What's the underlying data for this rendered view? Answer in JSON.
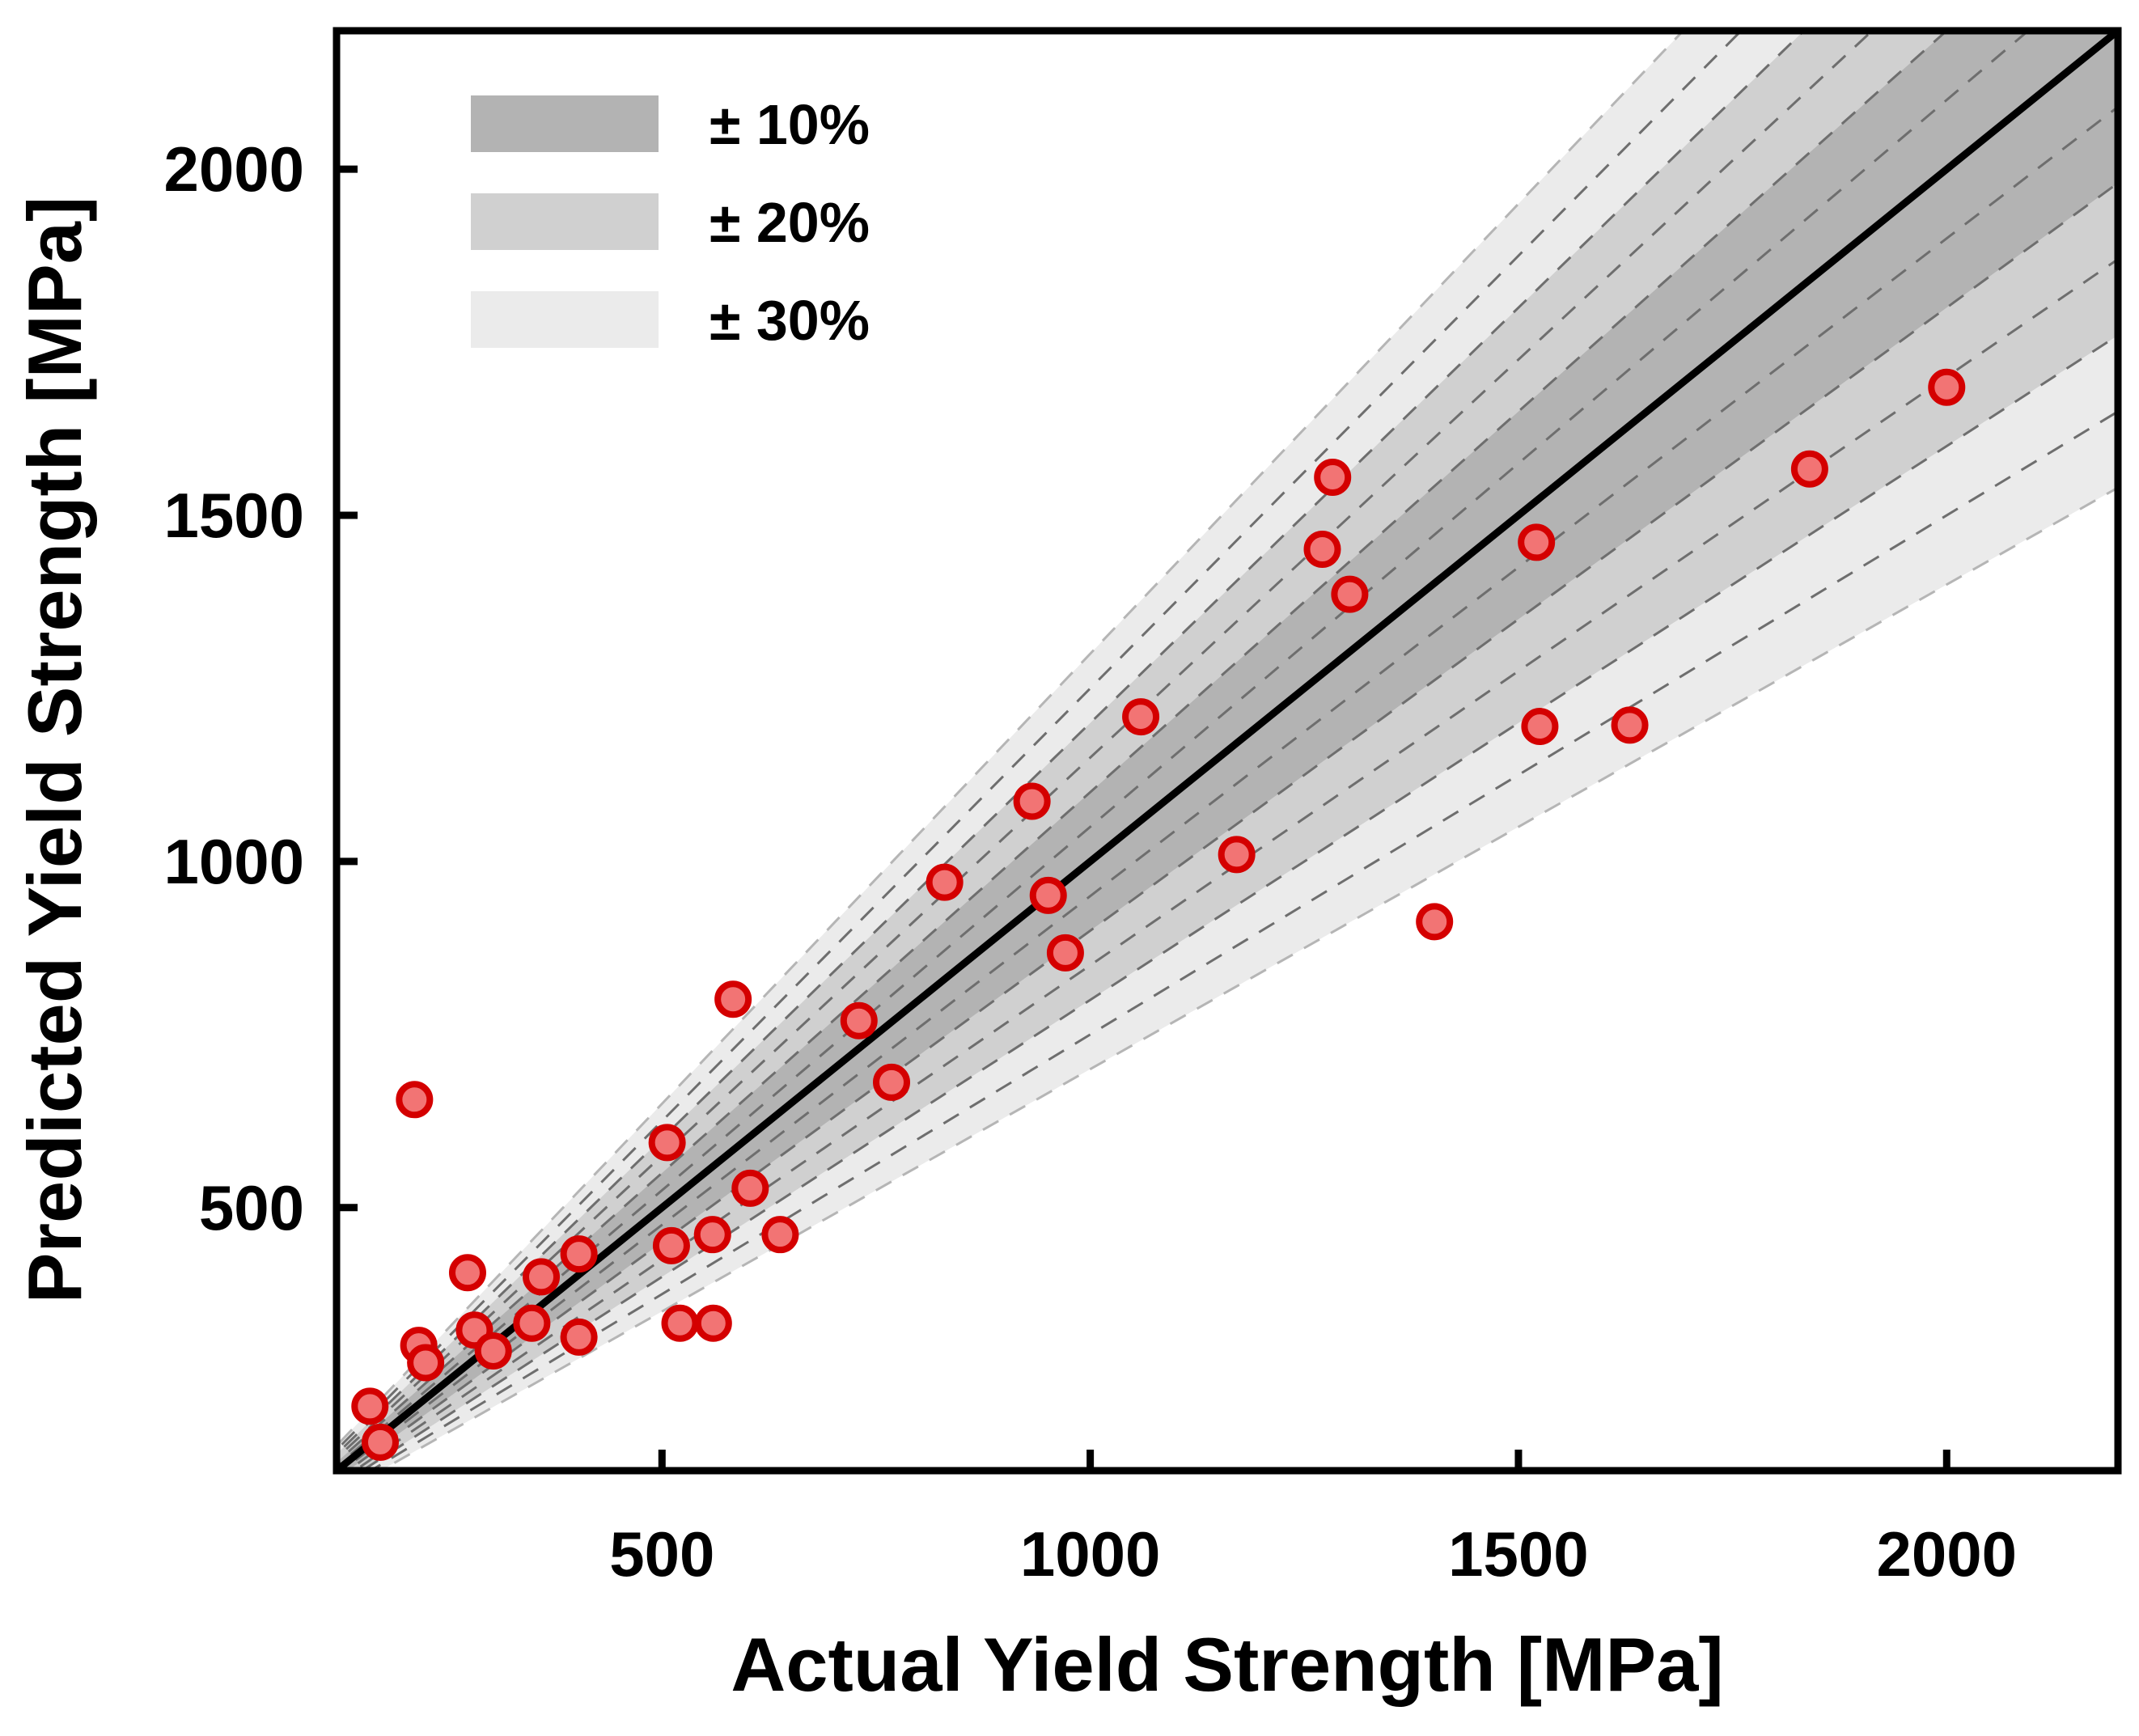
{
  "chart_data": {
    "type": "scatter",
    "title": "",
    "xlabel": "Actual Yield Strength [MPa]",
    "ylabel": "Predicted Yield Strength [MPa]",
    "xlim": [
      120,
      2200
    ],
    "ylim": [
      120,
      2200
    ],
    "xticks": [
      500,
      1000,
      1500,
      2000
    ],
    "yticks": [
      500,
      1000,
      1500,
      2000
    ],
    "xtick_labels": [
      "500",
      "1000",
      "1500",
      "2000"
    ],
    "ytick_labels": [
      "500",
      "1000",
      "1500",
      "2000"
    ],
    "grid": false,
    "legend_placement": "top-left",
    "reference_line": "y = x",
    "bands": [
      {
        "label": "± 10%",
        "fraction": 0.1,
        "color": "#b3b3b3"
      },
      {
        "label": "± 20%",
        "fraction": 0.2,
        "color": "#d0d0d0"
      },
      {
        "label": "± 30%",
        "fraction": 0.3,
        "color": "#ebebeb"
      }
    ],
    "marker": {
      "fill": "#f27474",
      "edge": "#d40000"
    },
    "points": [
      [
        159,
        213
      ],
      [
        171,
        161
      ],
      [
        211,
        656
      ],
      [
        216,
        301
      ],
      [
        224,
        276
      ],
      [
        273,
        406
      ],
      [
        281,
        323
      ],
      [
        303,
        293
      ],
      [
        348,
        333
      ],
      [
        359,
        400
      ],
      [
        403,
        433
      ],
      [
        403,
        313
      ],
      [
        506,
        594
      ],
      [
        511,
        445
      ],
      [
        521,
        333
      ],
      [
        559,
        461
      ],
      [
        560,
        333
      ],
      [
        583,
        801
      ],
      [
        603,
        528
      ],
      [
        638,
        461
      ],
      [
        730,
        770
      ],
      [
        768,
        681
      ],
      [
        830,
        970
      ],
      [
        932,
        1087
      ],
      [
        951,
        951
      ],
      [
        971,
        868
      ],
      [
        1059,
        1209
      ],
      [
        1171,
        1010
      ],
      [
        1271,
        1451
      ],
      [
        1283,
        1555
      ],
      [
        1303,
        1386
      ],
      [
        1402,
        913
      ],
      [
        1521,
        1461
      ],
      [
        1525,
        1195
      ],
      [
        1630,
        1197
      ],
      [
        1840,
        1567
      ],
      [
        2000,
        1685
      ]
    ]
  }
}
